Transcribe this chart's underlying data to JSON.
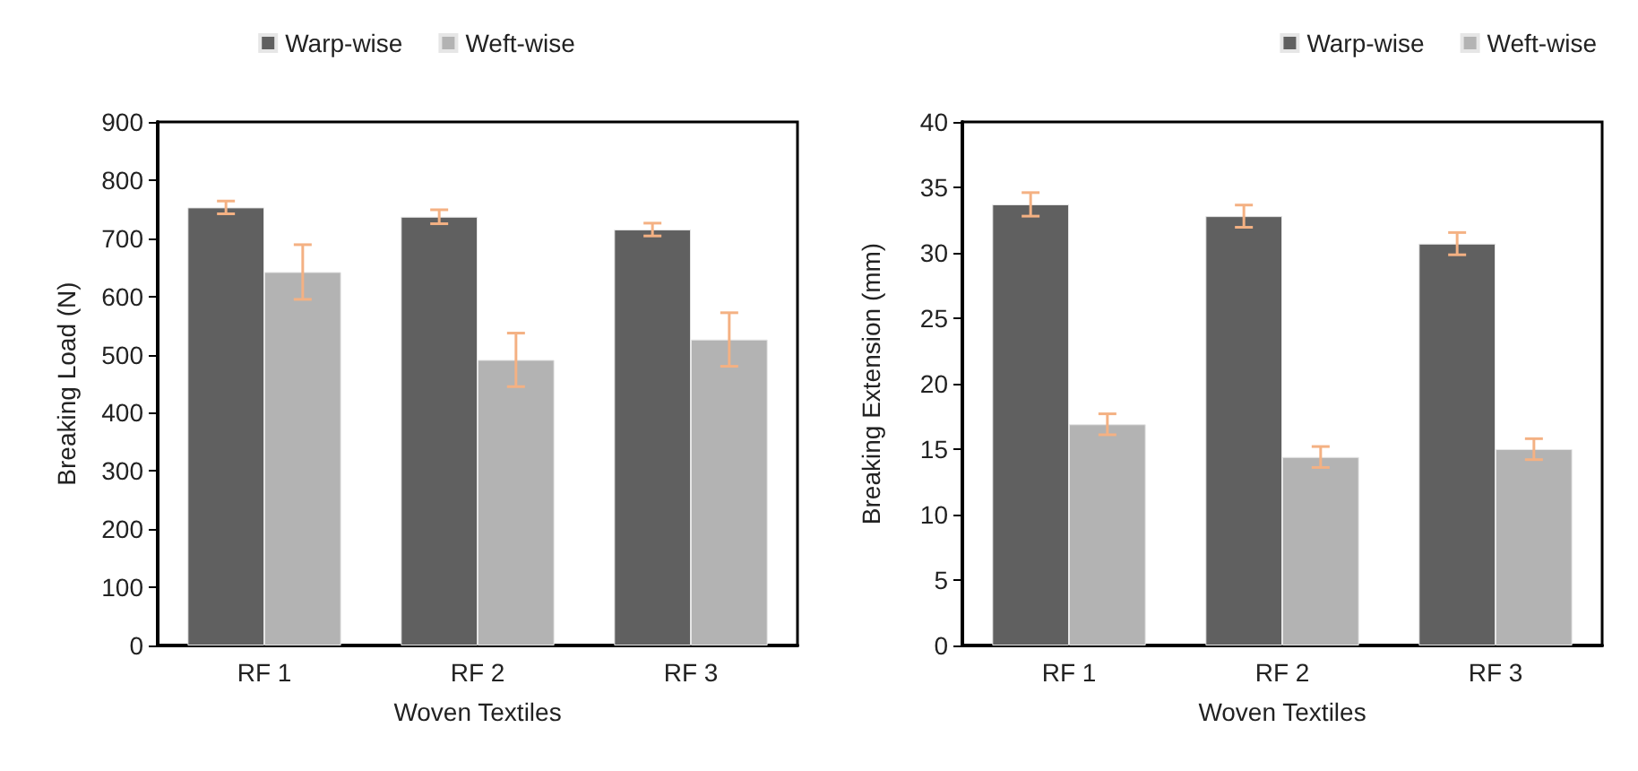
{
  "chart_data": [
    {
      "type": "bar",
      "categories": [
        "RF 1",
        "RF 2",
        "RF 3"
      ],
      "xlabel": "Woven Textiles",
      "ylabel": "Breaking Load (N)",
      "ylim": [
        0,
        900
      ],
      "yticks": [
        0,
        100,
        200,
        300,
        400,
        500,
        600,
        700,
        800,
        900
      ],
      "grid": false,
      "legend": "top",
      "series": [
        {
          "name": "Warp-wise",
          "color": "#606060",
          "values": [
            753,
            737,
            715
          ],
          "errors": [
            11,
            12,
            11
          ]
        },
        {
          "name": "Weft-wise",
          "color": "#b3b3b3",
          "values": [
            642,
            491,
            526
          ],
          "errors": [
            47,
            46,
            46
          ]
        }
      ]
    },
    {
      "type": "bar",
      "categories": [
        "RF 1",
        "RF 2",
        "RF 3"
      ],
      "xlabel": "Woven Textiles",
      "ylabel": "Breaking Extension (mm)",
      "ylim": [
        0,
        40
      ],
      "yticks": [
        0,
        5,
        10,
        15,
        20,
        25,
        30,
        35,
        40
      ],
      "grid": false,
      "legend": "top right",
      "series": [
        {
          "name": "Warp-wise",
          "color": "#606060",
          "values": [
            33.7,
            32.8,
            30.7
          ],
          "errors": [
            0.9,
            0.85,
            0.85
          ]
        },
        {
          "name": "Weft-wise",
          "color": "#b3b3b3",
          "values": [
            16.9,
            14.4,
            15.0
          ],
          "errors": [
            0.8,
            0.8,
            0.8
          ]
        }
      ]
    }
  ]
}
